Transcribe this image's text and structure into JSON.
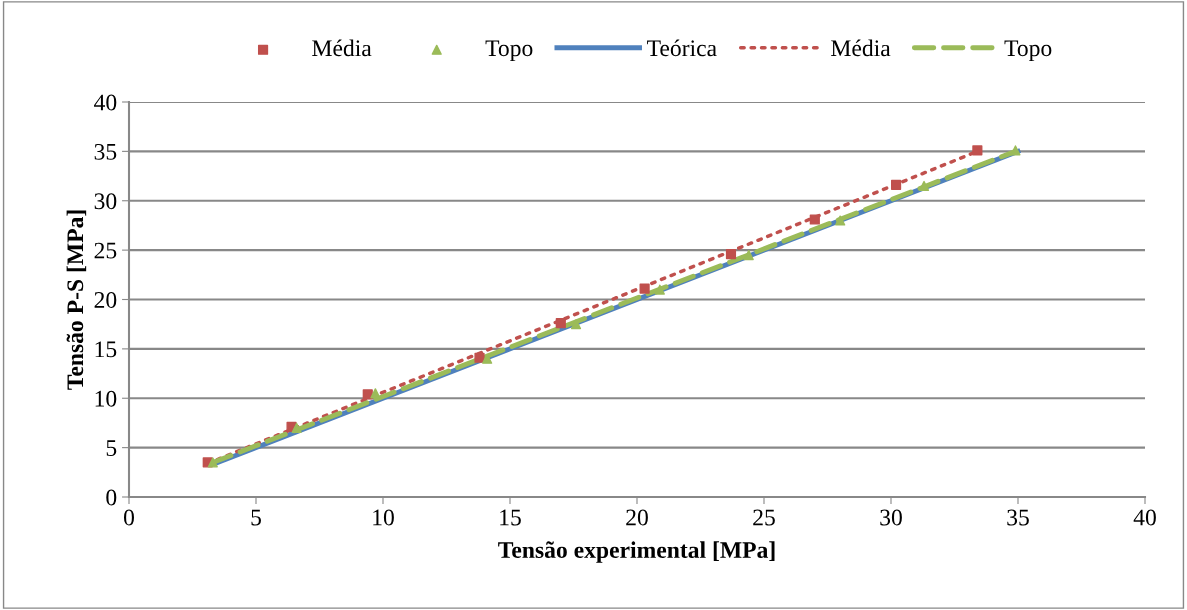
{
  "chart_data": {
    "type": "scatter",
    "xlabel": "Tensão experimental [MPa]",
    "ylabel": "Tensão P-S [MPa]",
    "xlim": [
      0,
      40
    ],
    "ylim": [
      0,
      40
    ],
    "xticks": [
      0,
      5,
      10,
      15,
      20,
      25,
      30,
      35,
      40
    ],
    "yticks": [
      0,
      5,
      10,
      15,
      20,
      25,
      30,
      35,
      40
    ],
    "grid": "y",
    "legend": "top",
    "series": [
      {
        "name": "Média",
        "marker": "square",
        "color": "#c0504d",
        "x": [
          3.1,
          6.4,
          9.4,
          13.8,
          17.0,
          20.3,
          23.7,
          27.0,
          30.2,
          33.4
        ],
        "values": [
          3.5,
          7.1,
          10.4,
          14.1,
          17.6,
          21.1,
          24.6,
          28.1,
          31.6,
          35.1
        ]
      },
      {
        "name": "Topo",
        "marker": "triangle",
        "color": "#9bbb59",
        "x": [
          3.3,
          6.6,
          9.7,
          14.1,
          17.6,
          20.9,
          24.4,
          28.0,
          31.3,
          34.9
        ],
        "values": [
          3.5,
          7.0,
          10.5,
          14.0,
          17.5,
          21.0,
          24.5,
          28.0,
          31.5,
          35.1
        ]
      },
      {
        "name": "Teórica",
        "type": "line",
        "line_style": "solid",
        "color": "#4f81bd",
        "x": [
          3.4,
          35.0
        ],
        "values": [
          3.4,
          35.0
        ]
      },
      {
        "name": "Média",
        "type": "line",
        "line_style": "dotted",
        "color": "#c0504d",
        "x": [
          3.1,
          33.4
        ],
        "values": [
          3.4,
          35.0
        ]
      },
      {
        "name": "Topo",
        "type": "line",
        "line_style": "dashed",
        "color": "#9bbb59",
        "x": [
          3.3,
          34.9
        ],
        "values": [
          3.5,
          35.0
        ]
      }
    ]
  }
}
